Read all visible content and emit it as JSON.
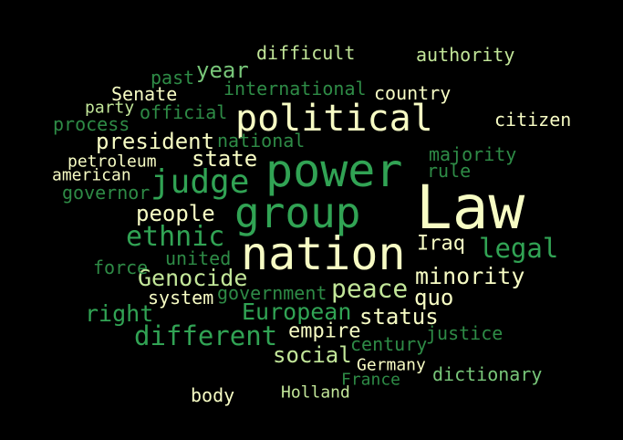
{
  "word_cloud": {
    "background": "#000000",
    "palette": [
      "#f7fcc4",
      "#c2e699",
      "#78c679",
      "#31a354",
      "#2e8b46"
    ],
    "words": {
      "law": "Law",
      "nation": "nation",
      "power": "power",
      "group": "group",
      "political": "political",
      "judge": "judge",
      "ethnic": "ethnic",
      "different": "different",
      "legal": "legal",
      "peace": "peace",
      "genocide": "Genocide",
      "minority": "minority",
      "european": "European",
      "right": "right",
      "people": "people",
      "president": "president",
      "status": "status",
      "social": "social",
      "state": "state",
      "quo": "quo",
      "year": "year",
      "iraq": "Iraq",
      "empire": "empire",
      "difficult": "difficult",
      "authority": "authority",
      "citizen": "citizen",
      "majority": "majority",
      "senate": "Senate",
      "country": "country",
      "national": "national",
      "international": "international",
      "process": "process",
      "official": "official",
      "past": "past",
      "rule": "rule",
      "governor": "governor",
      "united": "united",
      "force": "force",
      "system": "system",
      "government": "government",
      "justice": "justice",
      "century": "century",
      "dictionary": "dictionary",
      "body": "body",
      "holland": "Holland",
      "petroleum": "petroleum",
      "american": "american",
      "party": "party",
      "germany": "Germany",
      "france": "France"
    }
  }
}
